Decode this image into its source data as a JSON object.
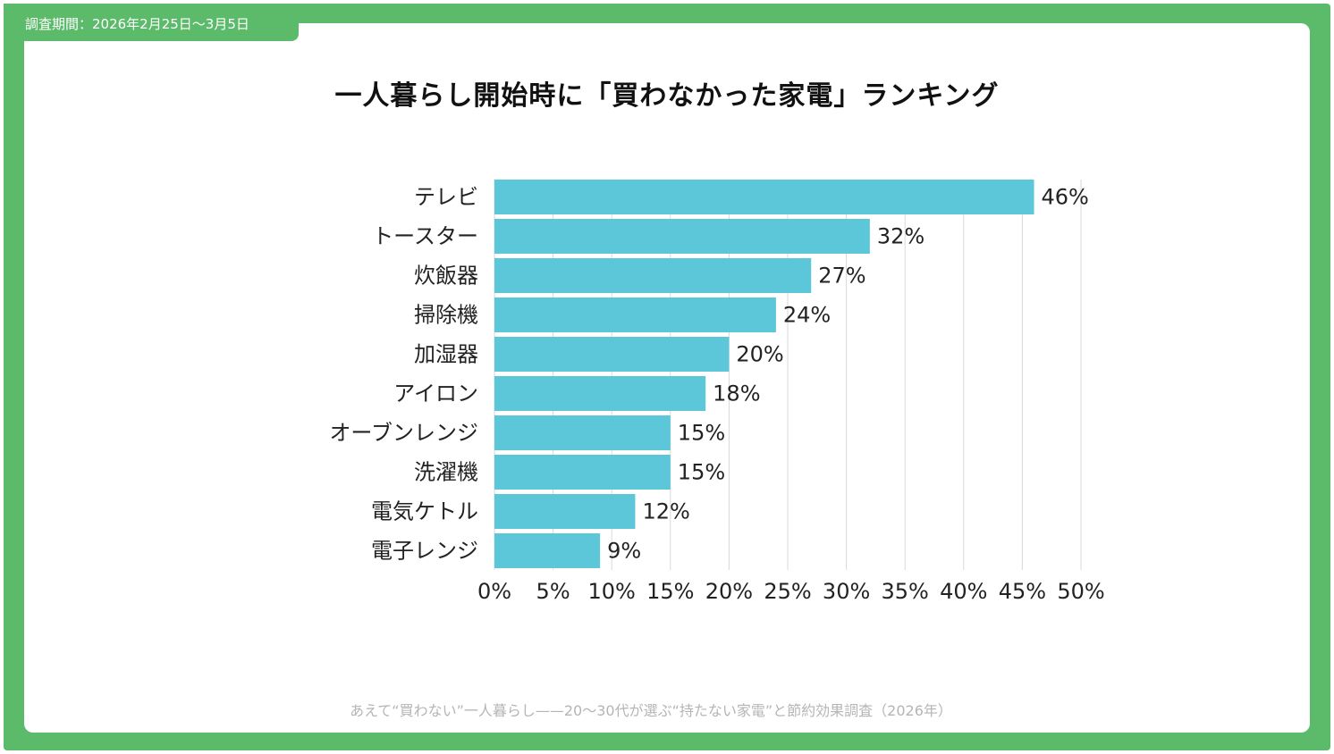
{
  "header": {
    "survey_period": "調査期間：2026年2月25日〜3月5日"
  },
  "footer": {
    "source": "あえて“買わない”一人暮らし——20〜30代が選ぶ“持たない家電”と節約効果調査（2026年）"
  },
  "colors": {
    "frame": "#5cbb6a",
    "bar": "#5bc7d9",
    "grid": "#d9d9d9"
  },
  "chart_data": {
    "type": "bar",
    "orientation": "horizontal",
    "title": "一人暮らし開始時に「買わなかった家電」ランキング",
    "categories": [
      "テレビ",
      "トースター",
      "炊飯器",
      "掃除機",
      "加湿器",
      "アイロン",
      "オーブンレンジ",
      "洗濯機",
      "電気ケトル",
      "電子レンジ"
    ],
    "values": [
      46,
      32,
      27,
      24,
      20,
      18,
      15,
      15,
      12,
      9
    ],
    "value_labels": [
      "46%",
      "32%",
      "27%",
      "24%",
      "20%",
      "18%",
      "15%",
      "15%",
      "12%",
      "9%"
    ],
    "xlim": [
      0,
      50
    ],
    "x_ticks": [
      0,
      5,
      10,
      15,
      20,
      25,
      30,
      35,
      40,
      45,
      50
    ],
    "x_tick_labels": [
      "0%",
      "5%",
      "10%",
      "15%",
      "20%",
      "25%",
      "30%",
      "35%",
      "40%",
      "45%",
      "50%"
    ],
    "grid": true,
    "legend": "none"
  }
}
